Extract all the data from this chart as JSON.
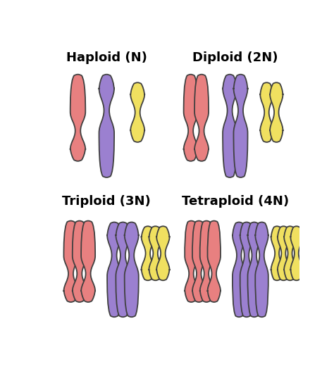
{
  "background_color": "#ffffff",
  "colors": {
    "red": "#E88080",
    "purple": "#9B80D0",
    "yellow": "#F0E060"
  },
  "border_color": "#404040",
  "border_width": 1.3,
  "labels": {
    "haploid": "Haploid (N)",
    "diploid": "Diploid (2N)",
    "triploid": "Triploid (3N)",
    "tetraploid": "Tetraploid (4N)"
  },
  "label_fontsize": 13,
  "label_fontweight": "bold"
}
